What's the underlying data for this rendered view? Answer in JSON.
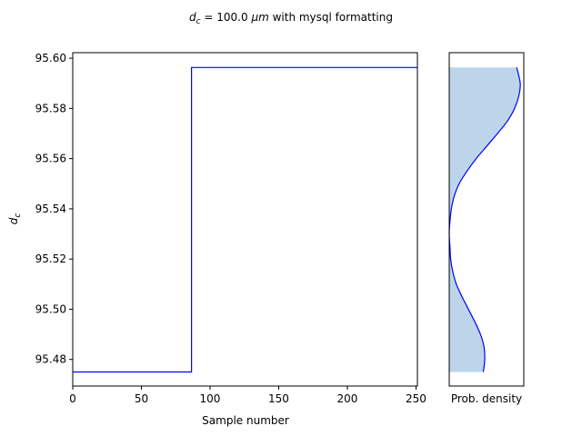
{
  "figure": {
    "title_prefix": "d",
    "title_sub": "c",
    "title_mid": " = 100.0 ",
    "title_unit": "μm",
    "title_suffix": " with mysql formatting"
  },
  "chart_data": [
    {
      "type": "line",
      "xlabel": "Sample number",
      "ylabel_main": "d",
      "ylabel_sub": "c",
      "xlim": [
        0,
        251
      ],
      "ylim": [
        95.4694,
        95.6022
      ],
      "xticks": [
        0,
        50,
        100,
        150,
        200,
        250
      ],
      "yticks": [
        95.48,
        95.5,
        95.52,
        95.54,
        95.56,
        95.58,
        95.6
      ],
      "ytick_labels": [
        "95.48",
        "95.50",
        "95.52",
        "95.54",
        "95.56",
        "95.58",
        "95.60"
      ],
      "series_color": "#0000ff",
      "segments": [
        {
          "x_start": 0,
          "x_end": 86,
          "y": 95.475
        },
        {
          "x_start": 87,
          "x_end": 251,
          "y": 95.5963
        }
      ],
      "step_x": 86.5
    },
    {
      "type": "area",
      "xlabel": "Prob. density",
      "orientation": "horizontal",
      "line_color": "#0000ff",
      "fill_color": "#bcd5ea",
      "ylim": [
        95.4694,
        95.6022
      ],
      "x_range": [
        0,
        1.05
      ],
      "density": [
        {
          "y": 95.475,
          "d": 0.48
        },
        {
          "y": 95.48,
          "d": 0.5
        },
        {
          "y": 95.485,
          "d": 0.49
        },
        {
          "y": 95.49,
          "d": 0.44
        },
        {
          "y": 95.495,
          "d": 0.36
        },
        {
          "y": 95.5,
          "d": 0.27
        },
        {
          "y": 95.505,
          "d": 0.18
        },
        {
          "y": 95.51,
          "d": 0.1
        },
        {
          "y": 95.515,
          "d": 0.05
        },
        {
          "y": 95.52,
          "d": 0.02
        },
        {
          "y": 95.525,
          "d": 0.01
        },
        {
          "y": 95.53,
          "d": 0.0
        },
        {
          "y": 95.535,
          "d": 0.01
        },
        {
          "y": 95.54,
          "d": 0.03
        },
        {
          "y": 95.545,
          "d": 0.07
        },
        {
          "y": 95.55,
          "d": 0.14
        },
        {
          "y": 95.555,
          "d": 0.25
        },
        {
          "y": 95.56,
          "d": 0.38
        },
        {
          "y": 95.565,
          "d": 0.53
        },
        {
          "y": 95.57,
          "d": 0.68
        },
        {
          "y": 95.575,
          "d": 0.82
        },
        {
          "y": 95.58,
          "d": 0.92
        },
        {
          "y": 95.585,
          "d": 0.98
        },
        {
          "y": 95.59,
          "d": 1.0
        },
        {
          "y": 95.5963,
          "d": 0.95
        }
      ]
    }
  ]
}
